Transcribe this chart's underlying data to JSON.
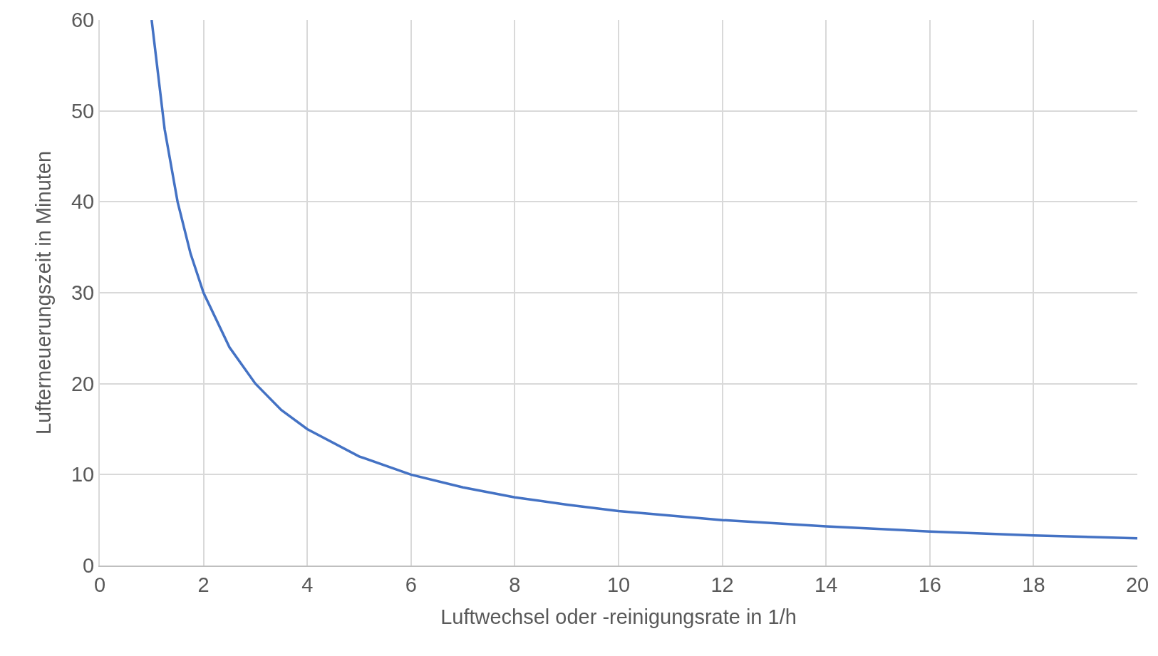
{
  "chart_data": {
    "type": "line",
    "xlabel": "Luftwechsel oder -reinigungsrate in 1/h",
    "ylabel": "Lufterneuerungszeit in Minuten",
    "x": [
      1,
      1.25,
      1.5,
      1.75,
      2,
      2.5,
      3,
      3.5,
      4,
      5,
      6,
      7,
      8,
      9,
      10,
      12,
      14,
      16,
      18,
      20
    ],
    "series": [
      {
        "color": "#4472c4",
        "values": [
          60,
          48,
          40,
          34.3,
          30,
          24,
          20,
          17.1,
          15,
          12,
          10,
          8.6,
          7.5,
          6.7,
          6,
          5,
          4.3,
          3.75,
          3.3,
          3
        ]
      }
    ],
    "xlim": [
      0,
      20
    ],
    "xticks": [
      0,
      2,
      4,
      6,
      8,
      10,
      12,
      14,
      16,
      18,
      20
    ],
    "ylim": [
      0,
      60
    ],
    "yticks": [
      0,
      10,
      20,
      30,
      40,
      50,
      60
    ],
    "grid": true,
    "legend": false,
    "marker": "none",
    "line_style": "solid"
  }
}
